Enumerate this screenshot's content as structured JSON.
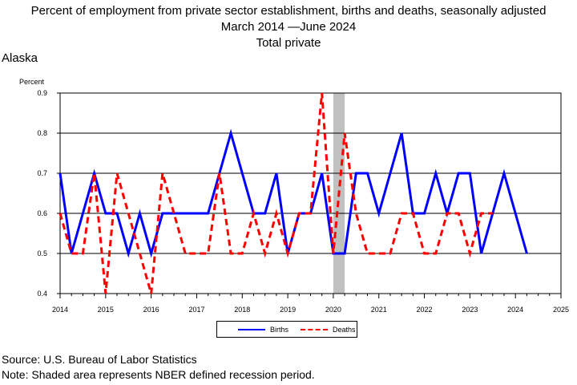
{
  "header": {
    "title_line1": "Percent of employment from private sector establishment, births and deaths, seasonally adjusted",
    "title_line2": "March 2014  —June 2024",
    "title_line3": "Total private",
    "region": "Alaska"
  },
  "legend": {
    "births_label": "Births",
    "deaths_label": "Deaths"
  },
  "footer": {
    "source": "Source: U.S. Bureau of Labor Statistics",
    "note": "Note: Shaded area represents NBER defined recession period."
  },
  "chart_data": {
    "type": "line",
    "ylabel": "Percent",
    "ylim": [
      0.4,
      0.9
    ],
    "yticks": [
      "0.4",
      "0.5",
      "0.6",
      "0.7",
      "0.8",
      "0.9"
    ],
    "xlim": [
      2014,
      2025
    ],
    "xticks": [
      "2014",
      "2015",
      "2016",
      "2017",
      "2018",
      "2019",
      "2020",
      "2021",
      "2022",
      "2023",
      "2024",
      "2025"
    ],
    "grid": "horizontal",
    "legend_position": "bottom",
    "recession_shading": {
      "from": 2020.0,
      "to": 2020.25,
      "color": "#c0c0c0"
    },
    "series": [
      {
        "name": "Births",
        "color": "#0000ff",
        "style": "solid",
        "points": [
          [
            2014.0,
            0.7
          ],
          [
            2014.25,
            0.5
          ],
          [
            2014.5,
            0.6
          ],
          [
            2014.75,
            0.7
          ],
          [
            2015.0,
            0.6
          ],
          [
            2015.25,
            0.6
          ],
          [
            2015.5,
            0.5
          ],
          [
            2015.75,
            0.6
          ],
          [
            2016.0,
            0.5
          ],
          [
            2016.25,
            0.6
          ],
          [
            2016.5,
            0.6
          ],
          [
            2016.75,
            0.6
          ],
          [
            2017.0,
            0.6
          ],
          [
            2017.25,
            0.6
          ],
          [
            2017.5,
            0.7
          ],
          [
            2017.75,
            0.8
          ],
          [
            2018.0,
            0.7
          ],
          [
            2018.25,
            0.6
          ],
          [
            2018.5,
            0.6
          ],
          [
            2018.75,
            0.7
          ],
          [
            2019.0,
            0.5
          ],
          [
            2019.25,
            0.6
          ],
          [
            2019.5,
            0.6
          ],
          [
            2019.75,
            0.7
          ],
          [
            2020.0,
            0.5
          ],
          [
            2020.25,
            0.5
          ],
          [
            2020.5,
            0.7
          ],
          [
            2020.75,
            0.7
          ],
          [
            2021.0,
            0.6
          ],
          [
            2021.25,
            0.7
          ],
          [
            2021.5,
            0.8
          ],
          [
            2021.75,
            0.6
          ],
          [
            2022.0,
            0.6
          ],
          [
            2022.25,
            0.7
          ],
          [
            2022.5,
            0.6
          ],
          [
            2022.75,
            0.7
          ],
          [
            2023.0,
            0.7
          ],
          [
            2023.25,
            0.5
          ],
          [
            2023.5,
            0.6
          ],
          [
            2023.75,
            0.7
          ],
          [
            2024.0,
            0.6
          ],
          [
            2024.25,
            0.5
          ]
        ]
      },
      {
        "name": "Deaths",
        "color": "#ff0000",
        "style": "dashed",
        "points": [
          [
            2014.0,
            0.6
          ],
          [
            2014.25,
            0.5
          ],
          [
            2014.5,
            0.5
          ],
          [
            2014.75,
            0.7
          ],
          [
            2015.0,
            0.4
          ],
          [
            2015.25,
            0.7
          ],
          [
            2015.5,
            0.6
          ],
          [
            2015.75,
            0.5
          ],
          [
            2016.0,
            0.4
          ],
          [
            2016.25,
            0.7
          ],
          [
            2016.5,
            0.6
          ],
          [
            2016.75,
            0.5
          ],
          [
            2017.0,
            0.5
          ],
          [
            2017.25,
            0.5
          ],
          [
            2017.5,
            0.7
          ],
          [
            2017.75,
            0.5
          ],
          [
            2018.0,
            0.5
          ],
          [
            2018.25,
            0.6
          ],
          [
            2018.5,
            0.5
          ],
          [
            2018.75,
            0.6
          ],
          [
            2019.0,
            0.5
          ],
          [
            2019.25,
            0.6
          ],
          [
            2019.5,
            0.6
          ],
          [
            2019.75,
            0.9
          ],
          [
            2020.0,
            0.5
          ],
          [
            2020.25,
            0.8
          ],
          [
            2020.5,
            0.6
          ],
          [
            2020.75,
            0.5
          ],
          [
            2021.0,
            0.5
          ],
          [
            2021.25,
            0.5
          ],
          [
            2021.5,
            0.6
          ],
          [
            2021.75,
            0.6
          ],
          [
            2022.0,
            0.5
          ],
          [
            2022.25,
            0.5
          ],
          [
            2022.5,
            0.6
          ],
          [
            2022.75,
            0.6
          ],
          [
            2023.0,
            0.5
          ],
          [
            2023.25,
            0.6
          ],
          [
            2023.5,
            0.6
          ]
        ]
      }
    ]
  }
}
